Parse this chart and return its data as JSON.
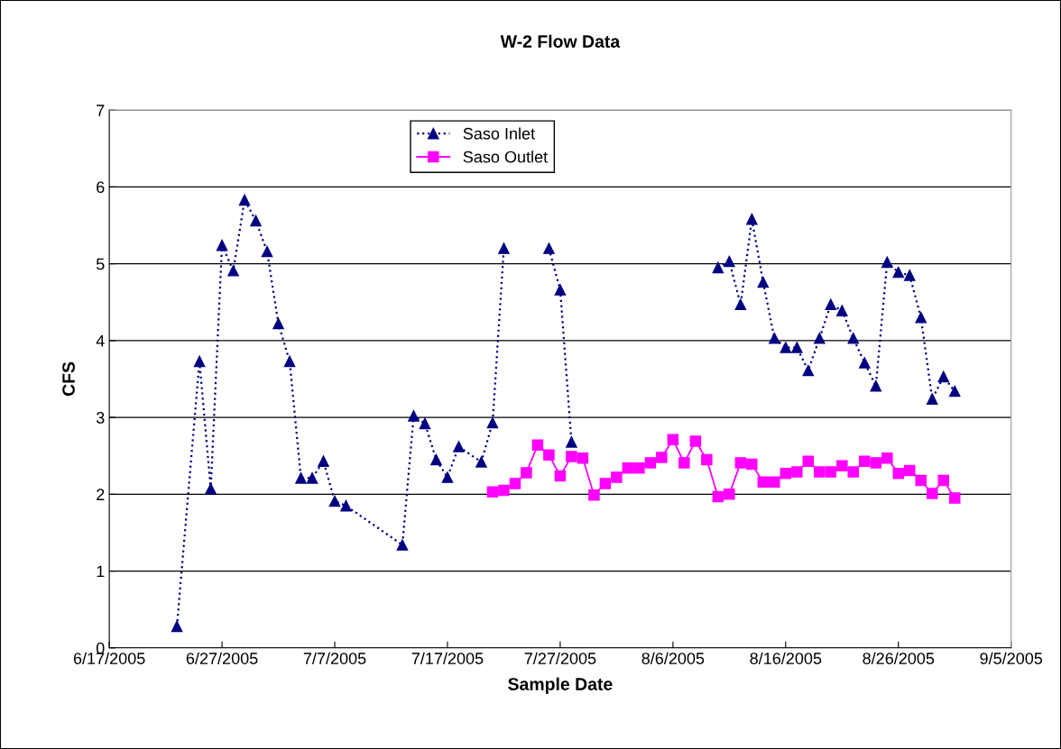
{
  "chart_data": {
    "type": "line",
    "title": "W-2 Flow Data",
    "xlabel": "Sample Date",
    "ylabel": "CFS",
    "series": [
      {
        "name": "Saso Inlet",
        "color": "#000080",
        "marker": "triangle",
        "line_style": "dotted",
        "x": [
          "2005-06-23",
          "2005-06-25",
          "2005-06-26",
          "2005-06-27",
          "2005-06-28",
          "2005-06-29",
          "2005-06-30",
          "2005-07-01",
          "2005-07-02",
          "2005-07-03",
          "2005-07-04",
          "2005-07-05",
          "2005-07-06",
          "2005-07-07",
          "2005-07-08",
          "2005-07-13",
          "2005-07-14",
          "2005-07-15",
          "2005-07-16",
          "2005-07-17",
          "2005-07-18",
          "2005-07-20",
          "2005-07-21",
          "2005-07-22",
          "2005-07-24",
          "2005-07-26",
          "2005-07-27",
          "2005-07-28",
          "2005-08-03",
          "2005-08-10",
          "2005-08-11",
          "2005-08-12",
          "2005-08-13",
          "2005-08-14",
          "2005-08-15",
          "2005-08-16",
          "2005-08-17",
          "2005-08-18",
          "2005-08-19",
          "2005-08-20",
          "2005-08-21",
          "2005-08-22",
          "2005-08-23",
          "2005-08-24",
          "2005-08-25",
          "2005-08-26",
          "2005-08-27",
          "2005-08-28",
          "2005-08-29",
          "2005-08-30",
          "2005-08-31"
        ],
        "values": [
          0.28,
          3.73,
          2.07,
          5.24,
          4.91,
          5.83,
          5.56,
          5.16,
          4.22,
          3.73,
          2.21,
          2.21,
          2.43,
          1.91,
          1.85,
          1.34,
          3.02,
          2.92,
          2.45,
          2.22,
          2.62,
          2.42,
          2.93,
          5.2,
          null,
          5.2,
          4.66,
          2.68,
          null,
          4.95,
          5.03,
          4.47,
          5.58,
          4.76,
          4.03,
          3.91,
          3.91,
          3.61,
          4.03,
          4.47,
          4.39,
          4.03,
          3.71,
          3.41,
          5.02,
          4.89,
          4.85,
          4.3,
          3.24,
          3.53,
          3.34
        ]
      },
      {
        "name": "Saso Outlet",
        "color": "#ff00ff",
        "marker": "square",
        "line_style": "solid",
        "x": [
          "2005-07-21",
          "2005-07-22",
          "2005-07-23",
          "2005-07-24",
          "2005-07-25",
          "2005-07-26",
          "2005-07-27",
          "2005-07-28",
          "2005-07-29",
          "2005-07-30",
          "2005-07-31",
          "2005-08-01",
          "2005-08-02",
          "2005-08-03",
          "2005-08-04",
          "2005-08-05",
          "2005-08-06",
          "2005-08-07",
          "2005-08-08",
          "2005-08-09",
          "2005-08-10",
          "2005-08-11",
          "2005-08-12",
          "2005-08-13",
          "2005-08-14",
          "2005-08-15",
          "2005-08-16",
          "2005-08-17",
          "2005-08-18",
          "2005-08-19",
          "2005-08-20",
          "2005-08-21",
          "2005-08-22",
          "2005-08-23",
          "2005-08-24",
          "2005-08-25",
          "2005-08-26",
          "2005-08-27",
          "2005-08-28",
          "2005-08-29",
          "2005-08-30",
          "2005-08-31"
        ],
        "values": [
          2.03,
          2.05,
          2.14,
          2.28,
          2.64,
          2.51,
          2.24,
          2.49,
          2.47,
          1.99,
          2.14,
          2.22,
          2.34,
          2.34,
          2.41,
          2.48,
          2.71,
          2.41,
          2.69,
          2.45,
          1.97,
          2.0,
          2.41,
          2.39,
          2.16,
          2.16,
          2.27,
          2.29,
          2.43,
          2.29,
          2.29,
          2.37,
          2.29,
          2.43,
          2.41,
          2.47,
          2.27,
          2.31,
          2.18,
          2.01,
          2.18,
          1.95
        ]
      }
    ],
    "xlim": [
      "2005-06-17",
      "2005-09-05"
    ],
    "xticks": [
      {
        "value": "2005-06-17",
        "label": "6/17/2005"
      },
      {
        "value": "2005-06-27",
        "label": "6/27/2005"
      },
      {
        "value": "2005-07-07",
        "label": "7/7/2005"
      },
      {
        "value": "2005-07-17",
        "label": "7/17/2005"
      },
      {
        "value": "2005-07-27",
        "label": "7/27/2005"
      },
      {
        "value": "2005-08-06",
        "label": "8/6/2005"
      },
      {
        "value": "2005-08-16",
        "label": "8/16/2005"
      },
      {
        "value": "2005-08-26",
        "label": "8/26/2005"
      },
      {
        "value": "2005-09-05",
        "label": "9/5/2005"
      }
    ],
    "ylim": [
      0,
      7
    ],
    "yticks": [
      0,
      1,
      2,
      3,
      4,
      5,
      6,
      7
    ],
    "grid": "y",
    "legend": "top left"
  }
}
